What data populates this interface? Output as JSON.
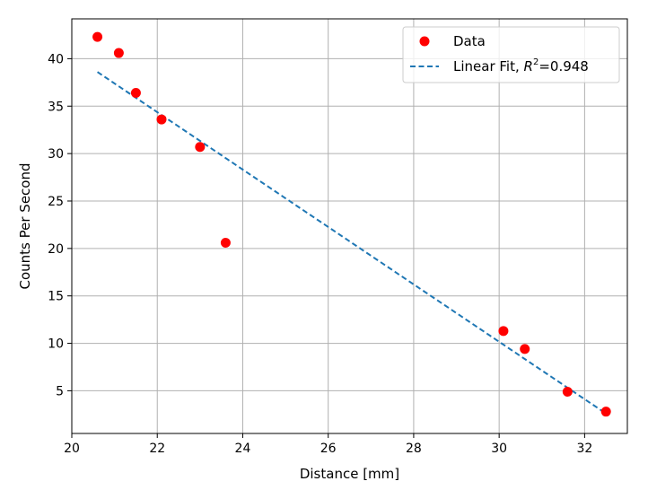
{
  "chart_data": {
    "type": "scatter",
    "xlabel": "Distance [mm]",
    "ylabel": "Counts Per Second",
    "xlim": [
      20,
      33
    ],
    "ylim": [
      0.5,
      44.2
    ],
    "x_ticks": [
      20,
      22,
      24,
      26,
      28,
      30,
      32
    ],
    "y_ticks": [
      5,
      10,
      15,
      20,
      25,
      30,
      35,
      40
    ],
    "grid": true,
    "legend_position": "top-right",
    "series": [
      {
        "name": "Data",
        "kind": "scatter",
        "color": "#ff0000",
        "points": [
          {
            "x": 20.6,
            "y": 42.3
          },
          {
            "x": 21.1,
            "y": 40.6
          },
          {
            "x": 21.5,
            "y": 36.4
          },
          {
            "x": 22.1,
            "y": 33.6
          },
          {
            "x": 23.0,
            "y": 30.7
          },
          {
            "x": 23.6,
            "y": 20.6
          },
          {
            "x": 30.1,
            "y": 11.3
          },
          {
            "x": 30.6,
            "y": 9.4
          },
          {
            "x": 31.6,
            "y": 4.9
          },
          {
            "x": 32.5,
            "y": 2.8
          }
        ]
      },
      {
        "name_prefix": "Linear Fit, ",
        "name_symbol": "R",
        "name_superscript": "2",
        "name_value": "=0.948",
        "kind": "line",
        "style": "dashed",
        "color": "#1f77b4",
        "points": [
          {
            "x": 20.6,
            "y": 38.6
          },
          {
            "x": 32.5,
            "y": 2.6
          }
        ]
      }
    ]
  }
}
